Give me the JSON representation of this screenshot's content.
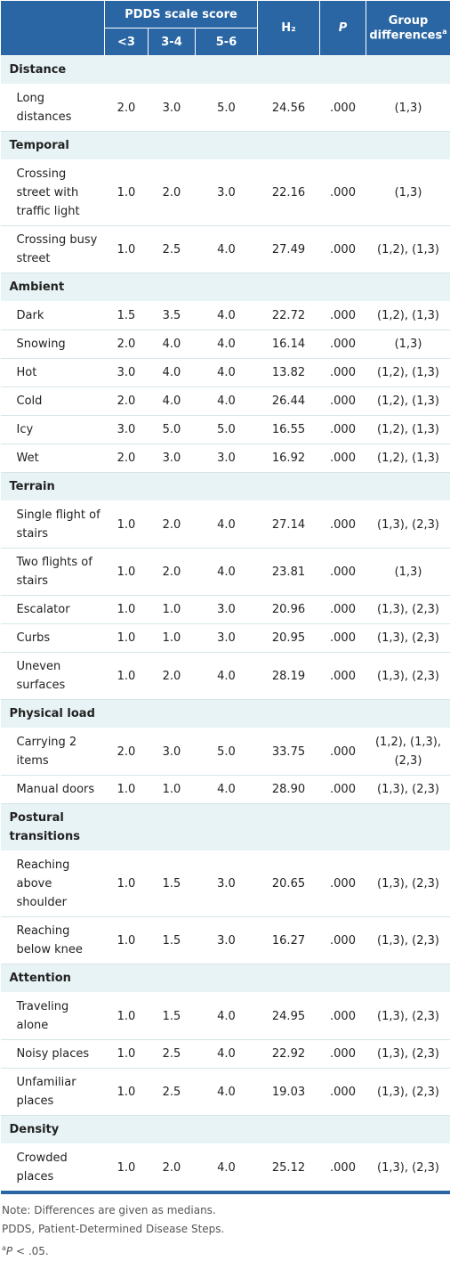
{
  "header": {
    "pdds": "PDDS scale score",
    "groups": [
      "<3",
      "3-4",
      "5-6"
    ],
    "h": "H₂",
    "p": "P",
    "diff": "Group differences",
    "diff_mark": "a"
  },
  "sections": [
    {
      "title": "Distance",
      "rows": [
        [
          "Long distances",
          "2.0",
          "3.0",
          "5.0",
          "24.56",
          ".000",
          "(1,3)"
        ]
      ]
    },
    {
      "title": "Temporal",
      "rows": [
        [
          "Crossing street with traffic light",
          "1.0",
          "2.0",
          "3.0",
          "22.16",
          ".000",
          "(1,3)"
        ],
        [
          "Crossing busy street",
          "1.0",
          "2.5",
          "4.0",
          "27.49",
          ".000",
          "(1,2), (1,3)"
        ]
      ]
    },
    {
      "title": "Ambient",
      "rows": [
        [
          "Dark",
          "1.5",
          "3.5",
          "4.0",
          "22.72",
          ".000",
          "(1,2), (1,3)"
        ],
        [
          "Snowing",
          "2.0",
          "4.0",
          "4.0",
          "16.14",
          ".000",
          "(1,3)"
        ],
        [
          "Hot",
          "3.0",
          "4.0",
          "4.0",
          "13.82",
          ".000",
          "(1,2), (1,3)"
        ],
        [
          "Cold",
          "2.0",
          "4.0",
          "4.0",
          "26.44",
          ".000",
          "(1,2), (1,3)"
        ],
        [
          "Icy",
          "3.0",
          "5.0",
          "5.0",
          "16.55",
          ".000",
          "(1,2), (1,3)"
        ],
        [
          "Wet",
          "2.0",
          "3.0",
          "3.0",
          "16.92",
          ".000",
          "(1,2), (1,3)"
        ]
      ]
    },
    {
      "title": "Terrain",
      "rows": [
        [
          "Single flight of stairs",
          "1.0",
          "2.0",
          "4.0",
          "27.14",
          ".000",
          "(1,3), (2,3)"
        ],
        [
          "Two flights of stairs",
          "1.0",
          "2.0",
          "4.0",
          "23.81",
          ".000",
          "(1,3)"
        ],
        [
          "Escalator",
          "1.0",
          "1.0",
          "3.0",
          "20.96",
          ".000",
          "(1,3), (2,3)"
        ],
        [
          "Curbs",
          "1.0",
          "1.0",
          "3.0",
          "20.95",
          ".000",
          "(1,3), (2,3)"
        ],
        [
          "Uneven surfaces",
          "1.0",
          "2.0",
          "4.0",
          "28.19",
          ".000",
          "(1,3), (2,3)"
        ]
      ]
    },
    {
      "title": "Physical load",
      "rows": [
        [
          "Carrying 2 items",
          "2.0",
          "3.0",
          "5.0",
          "33.75",
          ".000",
          "(1,2), (1,3), (2,3)"
        ],
        [
          "Manual doors",
          "1.0",
          "1.0",
          "4.0",
          "28.90",
          ".000",
          "(1,3), (2,3)"
        ]
      ]
    },
    {
      "title": "Postural transitions",
      "rows": [
        [
          "Reaching above shoulder",
          "1.0",
          "1.5",
          "3.0",
          "20.65",
          ".000",
          "(1,3), (2,3)"
        ],
        [
          "Reaching below knee",
          "1.0",
          "1.5",
          "3.0",
          "16.27",
          ".000",
          "(1,3), (2,3)"
        ]
      ]
    },
    {
      "title": "Attention",
      "rows": [
        [
          "Traveling alone",
          "1.0",
          "1.5",
          "4.0",
          "24.95",
          ".000",
          "(1,3), (2,3)"
        ],
        [
          "Noisy places",
          "1.0",
          "2.5",
          "4.0",
          "22.92",
          ".000",
          "(1,3), (2,3)"
        ],
        [
          "Unfamiliar places",
          "1.0",
          "2.5",
          "4.0",
          "19.03",
          ".000",
          "(1,3), (2,3)"
        ]
      ]
    },
    {
      "title": "Density",
      "rows": [
        [
          "Crowded places",
          "1.0",
          "2.0",
          "4.0",
          "25.12",
          ".000",
          "(1,3), (2,3)"
        ]
      ]
    }
  ],
  "notes": {
    "lines": [
      "Note: Differences are given as medians.",
      "PDDS, Patient-Determined Disease Steps."
    ],
    "mark": "a",
    "p": "P",
    "rest": " < .05."
  }
}
